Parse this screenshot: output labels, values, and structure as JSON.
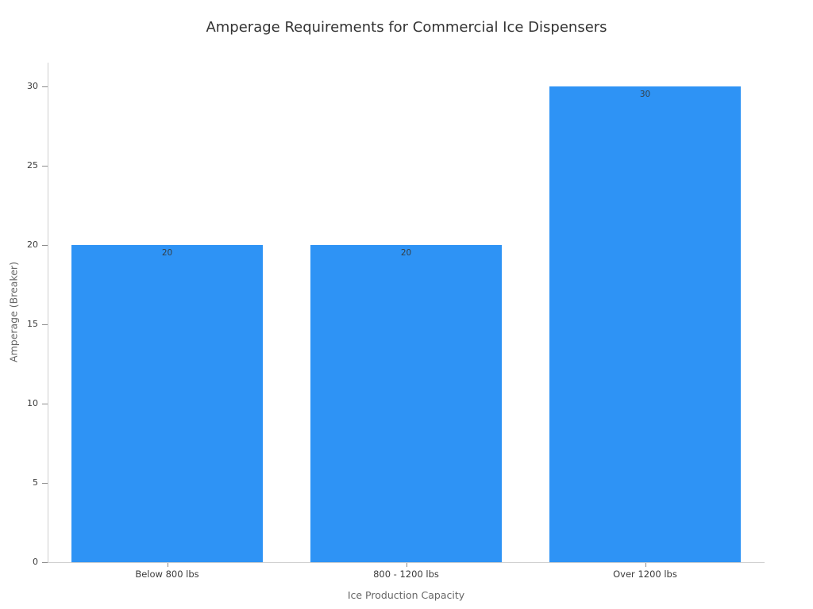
{
  "chart_data": {
    "type": "bar",
    "title": "Amperage Requirements for Commercial Ice Dispensers",
    "xlabel": "Ice Production Capacity",
    "ylabel": "Amperage (Breaker)",
    "categories": [
      "Below 800 lbs",
      "800 - 1200 lbs",
      "Over 1200 lbs"
    ],
    "values": [
      20,
      20,
      30
    ],
    "bar_value_labels": [
      "20",
      "20",
      "30"
    ],
    "yticks": [
      0,
      5,
      10,
      15,
      20,
      25,
      30
    ],
    "ylim": [
      0,
      31.5
    ],
    "grid": false,
    "legend_position": "none",
    "colors": {
      "bar": "#2e93f5",
      "axis_line": "#cfcfcf",
      "tick_mark": "#8c8c8c",
      "tick_label": "#3b3b3b",
      "axis_title": "#666666",
      "chart_title": "#333333",
      "value_label": "#333f48",
      "background": "#ffffff"
    }
  }
}
